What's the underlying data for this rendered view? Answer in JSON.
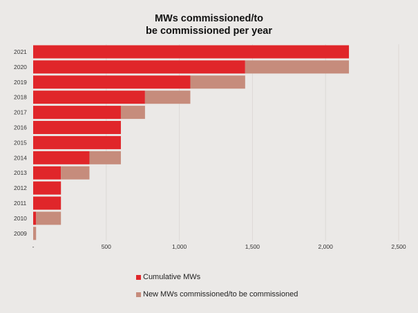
{
  "chart_data": {
    "type": "bar",
    "orientation": "horizontal",
    "stacked": true,
    "title_line1": "MWs commissioned/to",
    "title_line2": "be commissioned per year",
    "categories": [
      "2021",
      "2020",
      "2019",
      "2018",
      "2017",
      "2016",
      "2015",
      "2014",
      "2013",
      "2012",
      "2011",
      "2010",
      "2009"
    ],
    "series": [
      {
        "name": "Cumulative MWs",
        "color": "#e0262a",
        "values": [
          2160,
          1450,
          1075,
          765,
          600,
          600,
          600,
          385,
          190,
          190,
          190,
          20,
          0
        ]
      },
      {
        "name": "New MWs commissioned/to be commissioned",
        "color": "#c68c7c",
        "values": [
          0,
          710,
          375,
          310,
          165,
          0,
          0,
          215,
          195,
          0,
          0,
          170,
          20
        ]
      }
    ],
    "xlim": [
      0,
      2500
    ],
    "xticks": [
      0,
      500,
      1000,
      1500,
      2000,
      2500
    ],
    "xtick_labels": [
      "-",
      "500",
      "1,000",
      "1,500",
      "2,000",
      "2,500"
    ],
    "grid": "vertical",
    "legend_placement": "bottom"
  }
}
